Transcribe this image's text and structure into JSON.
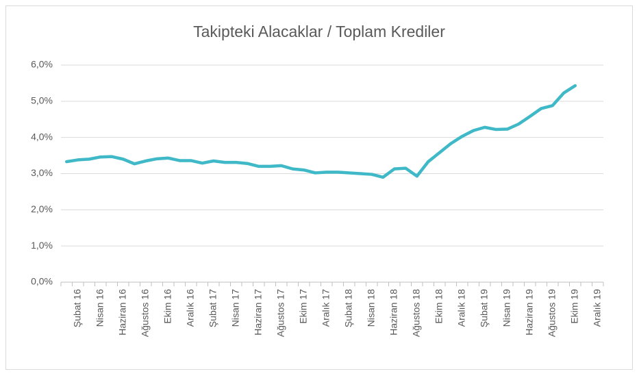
{
  "chart_data": {
    "type": "line",
    "title": "Takipteki Alacaklar / Toplam Krediler",
    "categories": [
      null,
      "Şubat 16",
      null,
      "Nisan 16",
      null,
      "Haziran 16",
      null,
      "Ağustos 16",
      null,
      "Ekim 16",
      null,
      "Aralık 16",
      null,
      "Şubat 17",
      null,
      "Nisan 17",
      null,
      "Haziran 17",
      null,
      "Ağustos 17",
      null,
      "Ekim 17",
      null,
      "Aralık 17",
      null,
      "Şubat 18",
      null,
      "Nisan 18",
      null,
      "Haziran 18",
      null,
      "Ağustos 18",
      null,
      "Ekim 18",
      null,
      "Aralık 18",
      null,
      "Şubat 19",
      null,
      "Nisan 19",
      null,
      "Haziran 19",
      null,
      "Ağustos 19",
      null,
      "Ekim 19",
      null,
      "Aralık 19"
    ],
    "values": [
      3.33,
      3.38,
      3.4,
      3.46,
      3.47,
      3.4,
      3.27,
      3.35,
      3.41,
      3.43,
      3.36,
      3.36,
      3.29,
      3.35,
      3.31,
      3.31,
      3.28,
      3.2,
      3.2,
      3.22,
      3.13,
      3.1,
      3.02,
      3.04,
      3.04,
      3.02,
      3.0,
      2.98,
      2.9,
      3.13,
      3.15,
      2.93,
      3.33,
      3.58,
      3.83,
      4.03,
      4.19,
      4.28,
      4.22,
      4.23,
      4.37,
      4.58,
      4.8,
      4.88,
      5.23,
      5.43,
      null,
      null
    ],
    "color": "#3fb8c8",
    "ylim": [
      0,
      6
    ],
    "yticks": [
      {
        "value": 0,
        "label": "0,0%"
      },
      {
        "value": 1,
        "label": "1,0%"
      },
      {
        "value": 2,
        "label": "2,0%"
      },
      {
        "value": 3,
        "label": "3,0%"
      },
      {
        "value": 4,
        "label": "4,0%"
      },
      {
        "value": 5,
        "label": "5,0%"
      },
      {
        "value": 6,
        "label": "6,0%"
      }
    ],
    "grid": true
  }
}
